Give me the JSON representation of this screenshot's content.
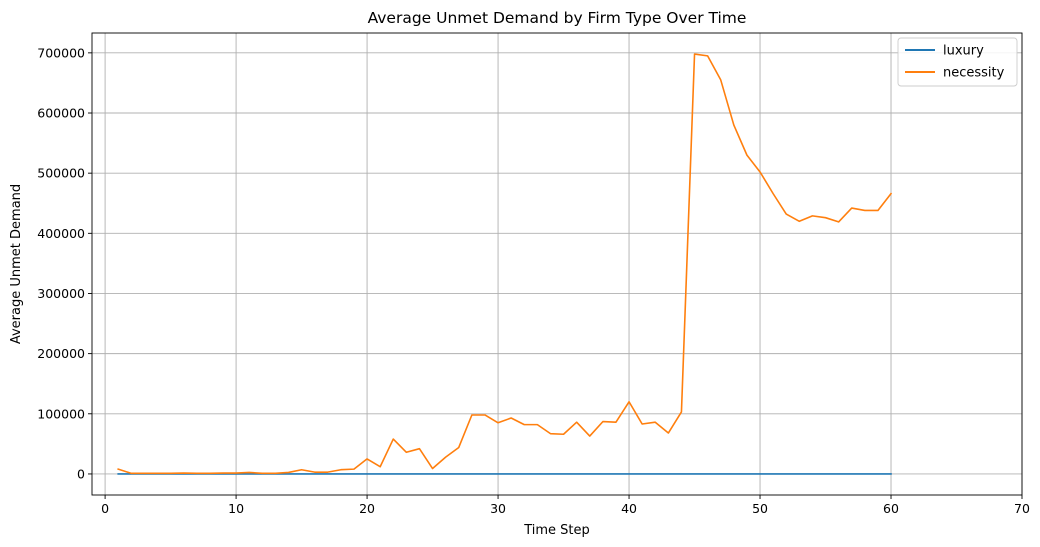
{
  "chart_data": {
    "type": "line",
    "title": "Average Unmet Demand by Firm Type Over Time",
    "xlabel": "Time Step",
    "ylabel": "Average Unmet Demand",
    "xlim": [
      -1,
      70
    ],
    "ylim": [
      -35000,
      733000
    ],
    "xticks": [
      0,
      10,
      20,
      30,
      40,
      50,
      60,
      70
    ],
    "yticks": [
      0,
      100000,
      200000,
      300000,
      400000,
      500000,
      600000,
      700000
    ],
    "grid": true,
    "legend_position": "top-right",
    "x": [
      1,
      2,
      3,
      4,
      5,
      6,
      7,
      8,
      9,
      10,
      11,
      12,
      13,
      14,
      15,
      16,
      17,
      18,
      19,
      20,
      21,
      22,
      23,
      24,
      25,
      26,
      27,
      28,
      29,
      30,
      31,
      32,
      33,
      34,
      35,
      36,
      37,
      38,
      39,
      40,
      41,
      42,
      43,
      44,
      45,
      46,
      47,
      48,
      49,
      50,
      51,
      52,
      53,
      54,
      55,
      56,
      57,
      58,
      59,
      60
    ],
    "series": [
      {
        "name": "luxury",
        "color": "#1f77b4",
        "values": [
          0,
          0,
          0,
          0,
          0,
          0,
          0,
          0,
          0,
          0,
          0,
          0,
          0,
          0,
          0,
          0,
          0,
          0,
          0,
          0,
          0,
          0,
          0,
          0,
          0,
          0,
          0,
          0,
          0,
          0,
          0,
          0,
          0,
          0,
          0,
          0,
          0,
          0,
          0,
          0,
          0,
          0,
          0,
          0,
          0,
          0,
          0,
          0,
          0,
          0,
          0,
          0,
          0,
          0,
          0,
          0,
          0,
          0,
          0,
          0
        ]
      },
      {
        "name": "necessity",
        "color": "#ff7f0e",
        "values": [
          8000,
          1000,
          1000,
          1000,
          1000,
          1500,
          1000,
          1000,
          1500,
          1500,
          2500,
          1000,
          1000,
          2500,
          7000,
          3000,
          3000,
          7000,
          8000,
          25000,
          12000,
          58000,
          36000,
          42000,
          9000,
          28000,
          44000,
          98000,
          98000,
          85000,
          93000,
          82000,
          82000,
          67000,
          66000,
          86000,
          63000,
          87000,
          86000,
          120000,
          83000,
          86000,
          68000,
          103000,
          698000,
          695000,
          655000,
          580000,
          530000,
          502000,
          466000,
          432000,
          420000,
          429000,
          426000,
          419000,
          442000,
          438000,
          438000,
          466000
        ]
      }
    ]
  }
}
